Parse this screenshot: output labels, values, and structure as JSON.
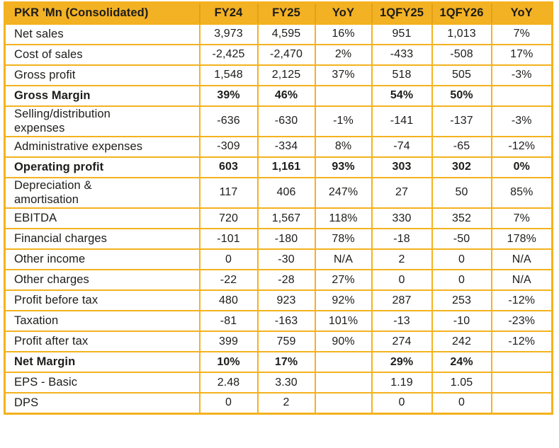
{
  "chart_data": {
    "type": "table",
    "title": "PKR 'Mn (Consolidated)",
    "columns": [
      "PKR 'Mn (Consolidated)",
      "FY24",
      "FY25",
      "YoY",
      "1QFY25",
      "1QFY26",
      "YoY"
    ],
    "rows": [
      {
        "label": "Net sales",
        "values": [
          "3,973",
          "4,595",
          "16%",
          "951",
          "1,013",
          "7%"
        ],
        "bold": false,
        "two_line": false
      },
      {
        "label": "Cost of sales",
        "values": [
          "-2,425",
          "-2,470",
          "2%",
          "-433",
          "-508",
          "17%"
        ],
        "bold": false,
        "two_line": false
      },
      {
        "label": "Gross profit",
        "values": [
          "1,548",
          "2,125",
          "37%",
          "518",
          "505",
          "-3%"
        ],
        "bold": false,
        "two_line": false
      },
      {
        "label": "Gross Margin",
        "values": [
          "39%",
          "46%",
          "",
          "54%",
          "50%",
          ""
        ],
        "bold": true,
        "two_line": false
      },
      {
        "label": "Selling/distribution expenses",
        "values": [
          "-636",
          "-630",
          "-1%",
          "-141",
          "-137",
          "-3%"
        ],
        "bold": false,
        "two_line": true
      },
      {
        "label": "Administrative expenses",
        "values": [
          "-309",
          "-334",
          "8%",
          "-74",
          "-65",
          "-12%"
        ],
        "bold": false,
        "two_line": false
      },
      {
        "label": "Operating profit",
        "values": [
          "603",
          "1,161",
          "93%",
          "303",
          "302",
          "0%"
        ],
        "bold": true,
        "two_line": false
      },
      {
        "label": "Depreciation & amortisation",
        "values": [
          "117",
          "406",
          "247%",
          "27",
          "50",
          "85%"
        ],
        "bold": false,
        "two_line": true
      },
      {
        "label": "EBITDA",
        "values": [
          "720",
          "1,567",
          "118%",
          "330",
          "352",
          "7%"
        ],
        "bold": false,
        "two_line": false
      },
      {
        "label": "Financial charges",
        "values": [
          "-101",
          "-180",
          "78%",
          "-18",
          "-50",
          "178%"
        ],
        "bold": false,
        "two_line": false
      },
      {
        "label": "Other income",
        "values": [
          "0",
          "-30",
          "N/A",
          "2",
          "0",
          "N/A"
        ],
        "bold": false,
        "two_line": false
      },
      {
        "label": "Other charges",
        "values": [
          "-22",
          "-28",
          "27%",
          "0",
          "0",
          "N/A"
        ],
        "bold": false,
        "two_line": false
      },
      {
        "label": "Profit before tax",
        "values": [
          "480",
          "923",
          "92%",
          "287",
          "253",
          "-12%"
        ],
        "bold": false,
        "two_line": false
      },
      {
        "label": "Taxation",
        "values": [
          "-81",
          "-163",
          "101%",
          "-13",
          "-10",
          "-23%"
        ],
        "bold": false,
        "two_line": false
      },
      {
        "label": "Profit after tax",
        "values": [
          "399",
          "759",
          "90%",
          "274",
          "242",
          "-12%"
        ],
        "bold": false,
        "two_line": false
      },
      {
        "label": "Net Margin",
        "values": [
          "10%",
          "17%",
          "",
          "29%",
          "24%",
          ""
        ],
        "bold": true,
        "two_line": false
      },
      {
        "label": "EPS - Basic",
        "values": [
          "2.48",
          "3.30",
          "",
          "1.19",
          "1.05",
          ""
        ],
        "bold": false,
        "two_line": false
      },
      {
        "label": "DPS",
        "values": [
          "0",
          "2",
          "",
          "0",
          "0",
          ""
        ],
        "bold": false,
        "two_line": false
      }
    ],
    "layout_hints": {
      "header_position": "top",
      "grid": true,
      "value_alignment": "center",
      "label_alignment": "left"
    },
    "colors": {
      "accent": "#F4B21E",
      "header_bg": "#F3B124",
      "header_divider": "#E4A117",
      "text": "#1C1C1A",
      "background": "#FFFFFF"
    }
  }
}
